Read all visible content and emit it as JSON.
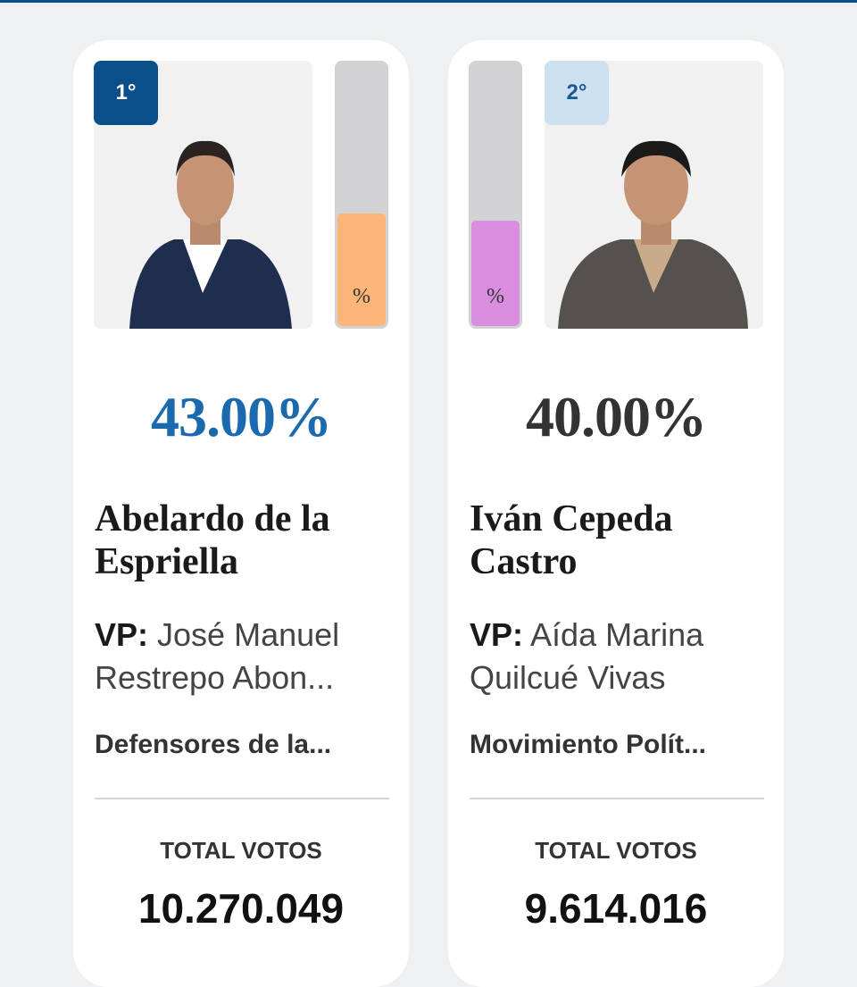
{
  "candidates": [
    {
      "rank": "1°",
      "share": {
        "value": 43,
        "label": "43.00%"
      },
      "bar_label": "%",
      "name": "Abelardo de la Espriella",
      "vp_label": "VP:",
      "vp": "José Manuel Restrepo Abon...",
      "party": "Defensores de la...",
      "votes_label": "TOTAL VOTOS",
      "votes": "10.270.049",
      "bar_color": "#fdb678",
      "share_color": "#1a6aad",
      "rank_bg": "#0b4f8a",
      "rank_color": "#ffffff"
    },
    {
      "rank": "2°",
      "share": {
        "value": 40,
        "label": "40.00%"
      },
      "bar_label": "%",
      "name": "Iván Cepeda Castro",
      "vp_label": "VP:",
      "vp": "Aída Marina Quilcué Vivas",
      "party": "Movimiento Polít...",
      "votes_label": "TOTAL VOTOS",
      "votes": "9.614.016",
      "bar_color": "#d98ee0",
      "share_color": "#333333",
      "rank_bg": "#cde0f0",
      "rank_color": "#1a5a96"
    }
  ]
}
